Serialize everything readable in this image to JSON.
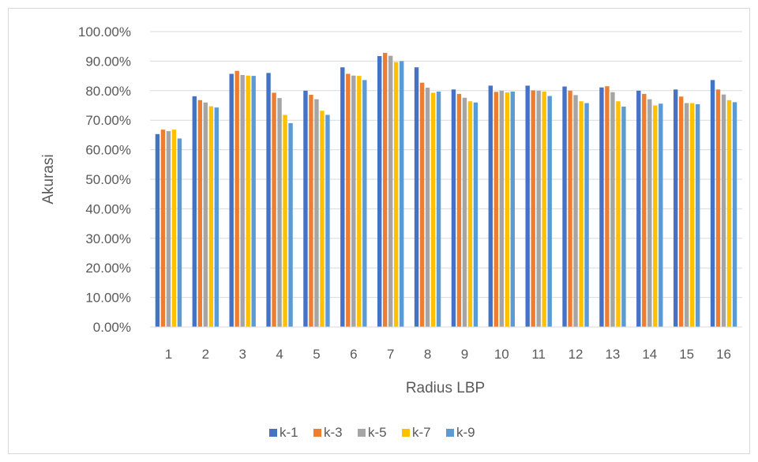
{
  "chart_data": {
    "type": "bar",
    "title": "",
    "xlabel": "Radius LBP",
    "ylabel": "Akurasi",
    "ylim": [
      0,
      100
    ],
    "y_ticks": [
      "0.00%",
      "10.00%",
      "20.00%",
      "30.00%",
      "40.00%",
      "50.00%",
      "60.00%",
      "70.00%",
      "80.00%",
      "90.00%",
      "100.00%"
    ],
    "categories": [
      "1",
      "2",
      "3",
      "4",
      "5",
      "6",
      "7",
      "8",
      "9",
      "10",
      "11",
      "12",
      "13",
      "14",
      "15",
      "16"
    ],
    "grid": true,
    "legend_position": "bottom",
    "series": [
      {
        "name": "k-1",
        "color": "#4472C4",
        "values": [
          65.3,
          78.1,
          85.7,
          86.0,
          80.0,
          87.9,
          91.7,
          87.9,
          80.4,
          81.7,
          81.7,
          81.4,
          81.1,
          80.0,
          80.4,
          83.6
        ]
      },
      {
        "name": "k-3",
        "color": "#ED7D31",
        "values": [
          66.8,
          76.8,
          86.7,
          79.3,
          78.6,
          85.7,
          92.8,
          82.7,
          78.9,
          79.6,
          80.1,
          80.0,
          81.5,
          78.9,
          78.0,
          80.4
        ]
      },
      {
        "name": "k-5",
        "color": "#A5A5A5",
        "values": [
          66.3,
          76.0,
          85.3,
          77.5,
          77.1,
          85.1,
          91.8,
          81.0,
          77.6,
          80.0,
          80.0,
          78.5,
          79.5,
          77.1,
          75.8,
          78.7
        ]
      },
      {
        "name": "k-7",
        "color": "#FFC000",
        "values": [
          66.8,
          74.7,
          85.1,
          71.8,
          73.2,
          85.0,
          89.7,
          79.3,
          76.4,
          79.4,
          79.7,
          76.4,
          76.4,
          75.0,
          75.8,
          76.8
        ]
      },
      {
        "name": "k-9",
        "color": "#5B9BD5",
        "values": [
          63.8,
          74.3,
          85.0,
          69.0,
          71.8,
          83.6,
          90.0,
          79.7,
          76.0,
          79.7,
          78.2,
          75.8,
          74.6,
          75.6,
          75.4,
          76.1
        ]
      }
    ]
  }
}
